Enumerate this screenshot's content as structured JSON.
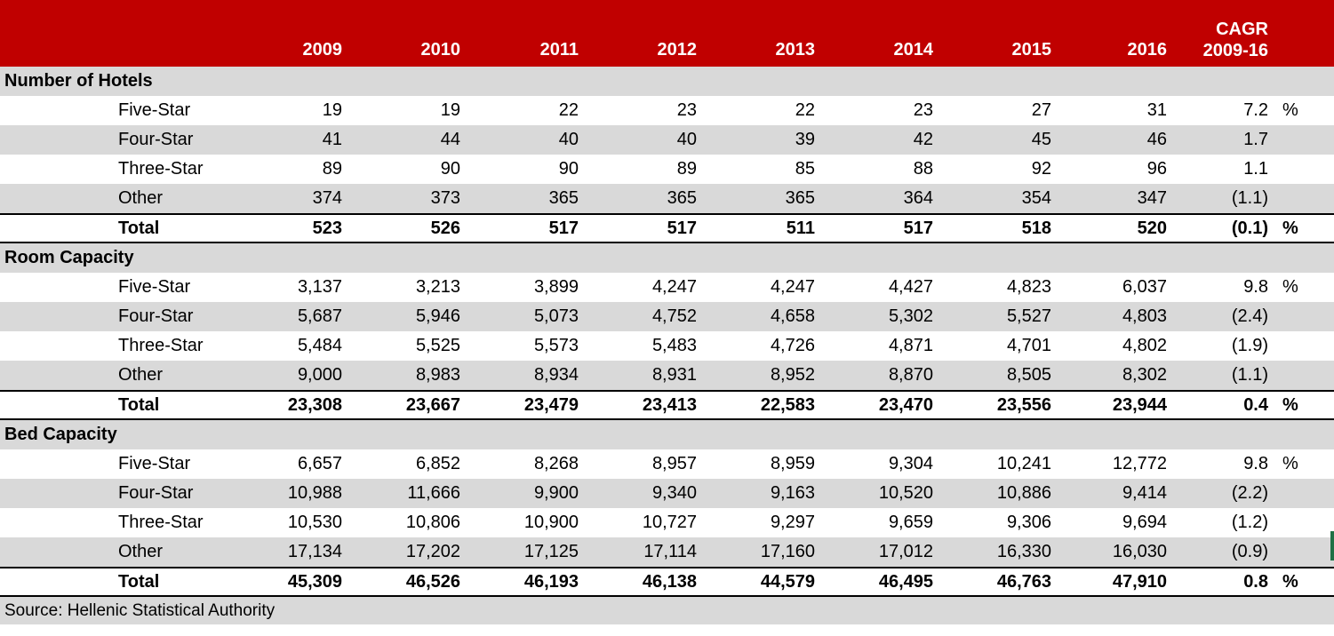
{
  "header": {
    "cagr_line1": "CAGR",
    "cagr_line2": "2009-16",
    "years": [
      "2009",
      "2010",
      "2011",
      "2012",
      "2013",
      "2014",
      "2015",
      "2016"
    ]
  },
  "sections": [
    {
      "title": "Number of Hotels",
      "rows": [
        {
          "label": "Five-Star",
          "values": [
            "19",
            "19",
            "22",
            "23",
            "22",
            "23",
            "27",
            "31"
          ],
          "cagr": "7.2",
          "pct": "%"
        },
        {
          "label": "Four-Star",
          "values": [
            "41",
            "44",
            "40",
            "40",
            "39",
            "42",
            "45",
            "46"
          ],
          "cagr": "1.7",
          "pct": ""
        },
        {
          "label": "Three-Star",
          "values": [
            "89",
            "90",
            "90",
            "89",
            "85",
            "88",
            "92",
            "96"
          ],
          "cagr": "1.1",
          "pct": ""
        },
        {
          "label": "Other",
          "values": [
            "374",
            "373",
            "365",
            "365",
            "365",
            "364",
            "354",
            "347"
          ],
          "cagr": "(1.1)",
          "pct": ""
        },
        {
          "label": "Total",
          "values": [
            "523",
            "526",
            "517",
            "517",
            "511",
            "517",
            "518",
            "520"
          ],
          "cagr": "(0.1)",
          "pct": "%",
          "is_total": true
        }
      ]
    },
    {
      "title": "Room Capacity",
      "rows": [
        {
          "label": "Five-Star",
          "values": [
            "3,137",
            "3,213",
            "3,899",
            "4,247",
            "4,247",
            "4,427",
            "4,823",
            "6,037"
          ],
          "cagr": "9.8",
          "pct": "%"
        },
        {
          "label": "Four-Star",
          "values": [
            "5,687",
            "5,946",
            "5,073",
            "4,752",
            "4,658",
            "5,302",
            "5,527",
            "4,803"
          ],
          "cagr": "(2.4)",
          "pct": ""
        },
        {
          "label": "Three-Star",
          "values": [
            "5,484",
            "5,525",
            "5,573",
            "5,483",
            "4,726",
            "4,871",
            "4,701",
            "4,802"
          ],
          "cagr": "(1.9)",
          "pct": ""
        },
        {
          "label": "Other",
          "values": [
            "9,000",
            "8,983",
            "8,934",
            "8,931",
            "8,952",
            "8,870",
            "8,505",
            "8,302"
          ],
          "cagr": "(1.1)",
          "pct": ""
        },
        {
          "label": "Total",
          "values": [
            "23,308",
            "23,667",
            "23,479",
            "23,413",
            "22,583",
            "23,470",
            "23,556",
            "23,944"
          ],
          "cagr": "0.4",
          "pct": "%",
          "is_total": true
        }
      ]
    },
    {
      "title": "Bed Capacity",
      "rows": [
        {
          "label": "Five-Star",
          "values": [
            "6,657",
            "6,852",
            "8,268",
            "8,957",
            "8,959",
            "9,304",
            "10,241",
            "12,772"
          ],
          "cagr": "9.8",
          "pct": "%"
        },
        {
          "label": "Four-Star",
          "values": [
            "10,988",
            "11,666",
            "9,900",
            "9,340",
            "9,163",
            "10,520",
            "10,886",
            "9,414"
          ],
          "cagr": "(2.2)",
          "pct": ""
        },
        {
          "label": "Three-Star",
          "values": [
            "10,530",
            "10,806",
            "10,900",
            "10,727",
            "9,297",
            "9,659",
            "9,306",
            "9,694"
          ],
          "cagr": "(1.2)",
          "pct": ""
        },
        {
          "label": "Other",
          "values": [
            "17,134",
            "17,202",
            "17,125",
            "17,114",
            "17,160",
            "17,012",
            "16,330",
            "16,030"
          ],
          "cagr": "(0.9)",
          "pct": ""
        },
        {
          "label": "Total",
          "values": [
            "45,309",
            "46,526",
            "46,193",
            "46,138",
            "44,579",
            "46,495",
            "46,763",
            "47,910"
          ],
          "cagr": "0.8",
          "pct": "%",
          "is_total": true
        }
      ]
    }
  ],
  "source": "Source: Hellenic Statistical Authority",
  "colors": {
    "header_red": "#C00000",
    "stripe_gray": "#D9D9D9",
    "text_black": "#000000",
    "edge_artifact_green": "#1E7145"
  }
}
